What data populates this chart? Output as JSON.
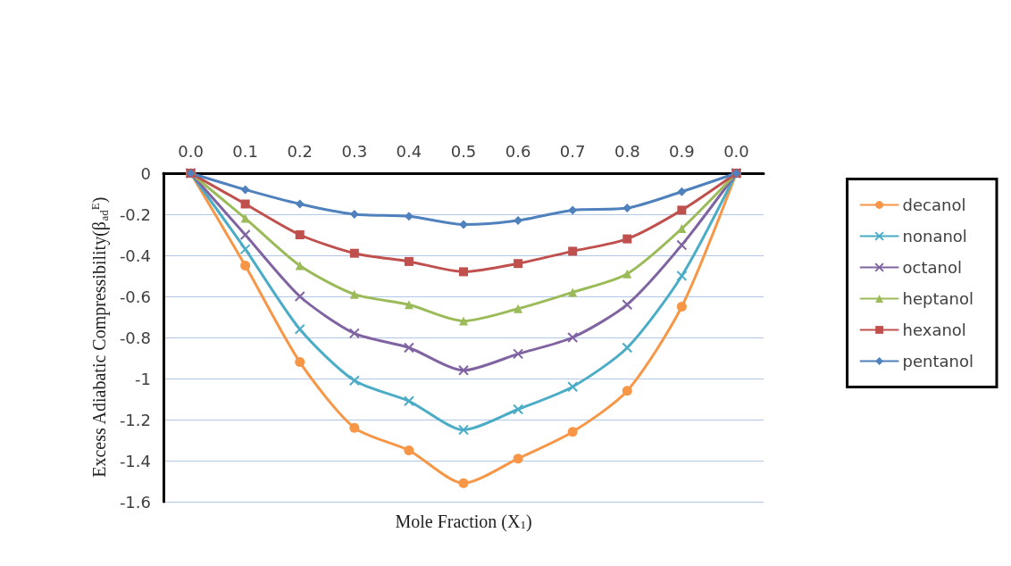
{
  "chart_data": {
    "type": "line",
    "xlabel": "Mole Fraction (X$_{1}$)",
    "ylabel": "Excess Adiabatic Compressibility(β$_{ad}$$^{E}$)",
    "categories": [
      "0.0",
      "0.1",
      "0.2",
      "0.3",
      "0.4",
      "0.5",
      "0.6",
      "0.7",
      "0.8",
      "0.9",
      "0.0"
    ],
    "ylim": [
      -1.6,
      0
    ],
    "yticks": [
      -1.6,
      -1.4,
      -1.2,
      -1,
      -0.8,
      -0.6,
      -0.4,
      -0.2,
      0
    ],
    "grid": "y",
    "legend": "right",
    "line_style": "solid",
    "series": [
      {
        "name": "decanol",
        "color": "#f79646",
        "marker": "circle",
        "values": [
          0,
          -0.45,
          -0.92,
          -1.24,
          -1.35,
          -1.51,
          -1.39,
          -1.26,
          -1.06,
          -0.65,
          0
        ]
      },
      {
        "name": "nonanol",
        "color": "#4bacc6",
        "marker": "cross",
        "values": [
          0,
          -0.37,
          -0.76,
          -1.01,
          -1.11,
          -1.25,
          -1.15,
          -1.04,
          -0.85,
          -0.5,
          0
        ]
      },
      {
        "name": "octanol",
        "color": "#8064a2",
        "marker": "cross",
        "values": [
          0,
          -0.3,
          -0.6,
          -0.78,
          -0.85,
          -0.96,
          -0.88,
          -0.8,
          -0.64,
          -0.35,
          0
        ]
      },
      {
        "name": "heptanol",
        "color": "#9bbb59",
        "marker": "triangle",
        "values": [
          0,
          -0.22,
          -0.45,
          -0.59,
          -0.64,
          -0.72,
          -0.66,
          -0.58,
          -0.49,
          -0.27,
          0
        ]
      },
      {
        "name": "hexanol",
        "color": "#c0504d",
        "marker": "square",
        "values": [
          0,
          -0.15,
          -0.3,
          -0.39,
          -0.43,
          -0.48,
          -0.44,
          -0.38,
          -0.32,
          -0.18,
          0
        ]
      },
      {
        "name": "pentanol",
        "color": "#4f81bd",
        "marker": "diamond",
        "values": [
          0,
          -0.08,
          -0.15,
          -0.2,
          -0.21,
          -0.25,
          -0.23,
          -0.18,
          -0.17,
          -0.09,
          0
        ]
      }
    ]
  }
}
